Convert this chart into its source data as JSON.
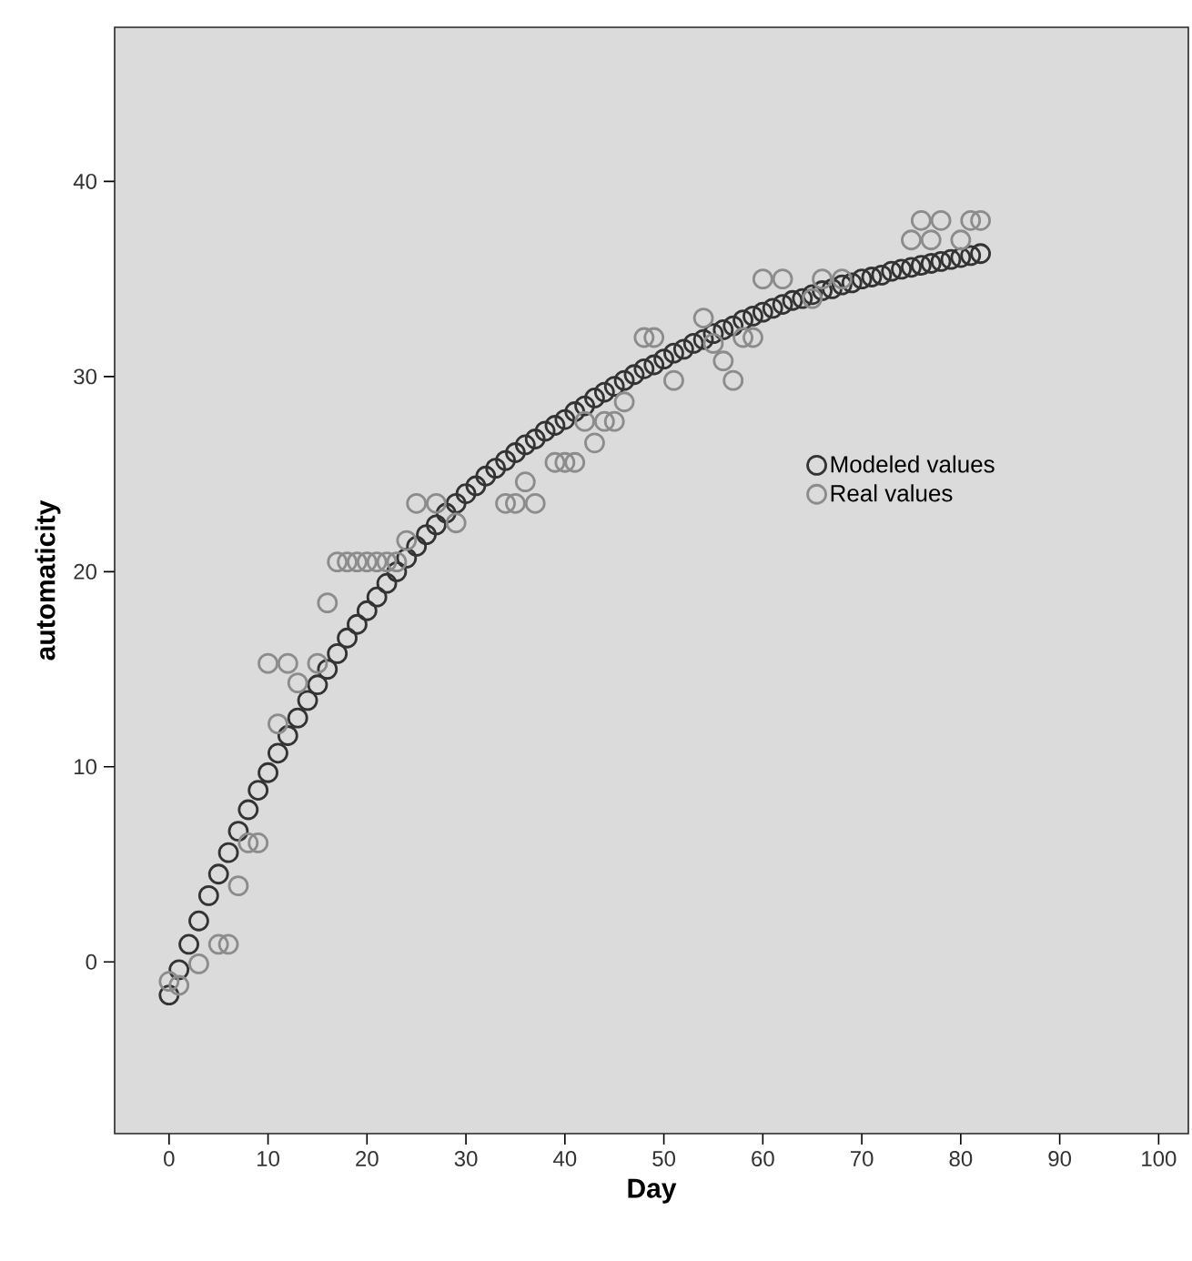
{
  "chart_data": {
    "type": "scatter",
    "xlabel": "Day",
    "ylabel": "automaticity",
    "xlim": [
      -5.5,
      103
    ],
    "ylim": [
      -8.8,
      47.9
    ],
    "xticks": [
      0,
      10,
      20,
      30,
      40,
      50,
      60,
      70,
      80,
      90,
      100
    ],
    "yticks": [
      0,
      10,
      20,
      30,
      40
    ],
    "grid": false,
    "legend": "right",
    "marker": "circle",
    "series": [
      {
        "name": "Modeled values",
        "color": "#333333",
        "x": [
          0,
          1,
          2,
          3,
          4,
          5,
          6,
          7,
          8,
          9,
          10,
          11,
          12,
          13,
          14,
          15,
          16,
          17,
          18,
          19,
          20,
          21,
          22,
          23,
          24,
          25,
          26,
          27,
          28,
          29,
          30,
          31,
          32,
          33,
          34,
          35,
          36,
          37,
          38,
          39,
          40,
          41,
          42,
          43,
          44,
          45,
          46,
          47,
          48,
          49,
          50,
          51,
          52,
          53,
          54,
          55,
          56,
          57,
          58,
          59,
          60,
          61,
          62,
          63,
          64,
          65,
          66,
          67,
          68,
          69,
          70,
          71,
          72,
          73,
          74,
          75,
          76,
          77,
          78,
          79,
          80,
          81,
          82
        ],
        "values": [
          -1.7,
          -0.4,
          0.9,
          2.1,
          3.4,
          4.5,
          5.6,
          6.7,
          7.8,
          8.8,
          9.7,
          10.7,
          11.6,
          12.5,
          13.4,
          14.2,
          15.0,
          15.8,
          16.6,
          17.3,
          18.0,
          18.7,
          19.4,
          20.0,
          20.7,
          21.3,
          21.9,
          22.4,
          23.0,
          23.5,
          24.0,
          24.4,
          24.9,
          25.3,
          25.7,
          26.1,
          26.5,
          26.8,
          27.2,
          27.5,
          27.8,
          28.2,
          28.5,
          28.9,
          29.2,
          29.5,
          29.8,
          30.1,
          30.4,
          30.6,
          30.9,
          31.2,
          31.4,
          31.7,
          31.9,
          32.2,
          32.4,
          32.6,
          32.9,
          33.1,
          33.3,
          33.5,
          33.7,
          33.9,
          34.0,
          34.2,
          34.4,
          34.5,
          34.7,
          34.8,
          35.0,
          35.1,
          35.2,
          35.4,
          35.5,
          35.6,
          35.7,
          35.8,
          35.9,
          36.0,
          36.1,
          36.2,
          36.3
        ]
      },
      {
        "name": "Real values",
        "color": "#8c8c8c",
        "x": [
          0,
          1,
          3,
          5,
          6,
          7,
          8,
          9,
          10,
          11,
          12,
          13,
          15,
          16,
          17,
          18,
          19,
          20,
          21,
          22,
          23,
          24,
          25,
          27,
          29,
          34,
          35,
          36,
          37,
          39,
          40,
          41,
          42,
          43,
          44,
          45,
          46,
          48,
          49,
          51,
          54,
          55,
          56,
          57,
          58,
          59,
          60,
          62,
          65,
          66,
          68,
          75,
          76,
          77,
          78,
          80,
          81,
          82
        ],
        "values": [
          -1,
          -1.2,
          -0.1,
          0.9,
          0.9,
          3.9,
          6.1,
          6.1,
          15.3,
          12.2,
          15.3,
          14.3,
          15.3,
          18.4,
          20.5,
          20.5,
          20.5,
          20.5,
          20.5,
          20.5,
          20.5,
          21.6,
          23.5,
          23.5,
          22.5,
          23.5,
          23.5,
          24.6,
          23.5,
          25.6,
          25.6,
          25.6,
          27.7,
          26.6,
          27.7,
          27.7,
          28.7,
          32,
          32,
          29.8,
          33,
          31.7,
          30.8,
          29.8,
          32,
          32,
          35,
          35,
          34,
          35,
          35,
          37,
          38,
          37,
          38,
          37,
          38,
          38
        ]
      }
    ]
  }
}
